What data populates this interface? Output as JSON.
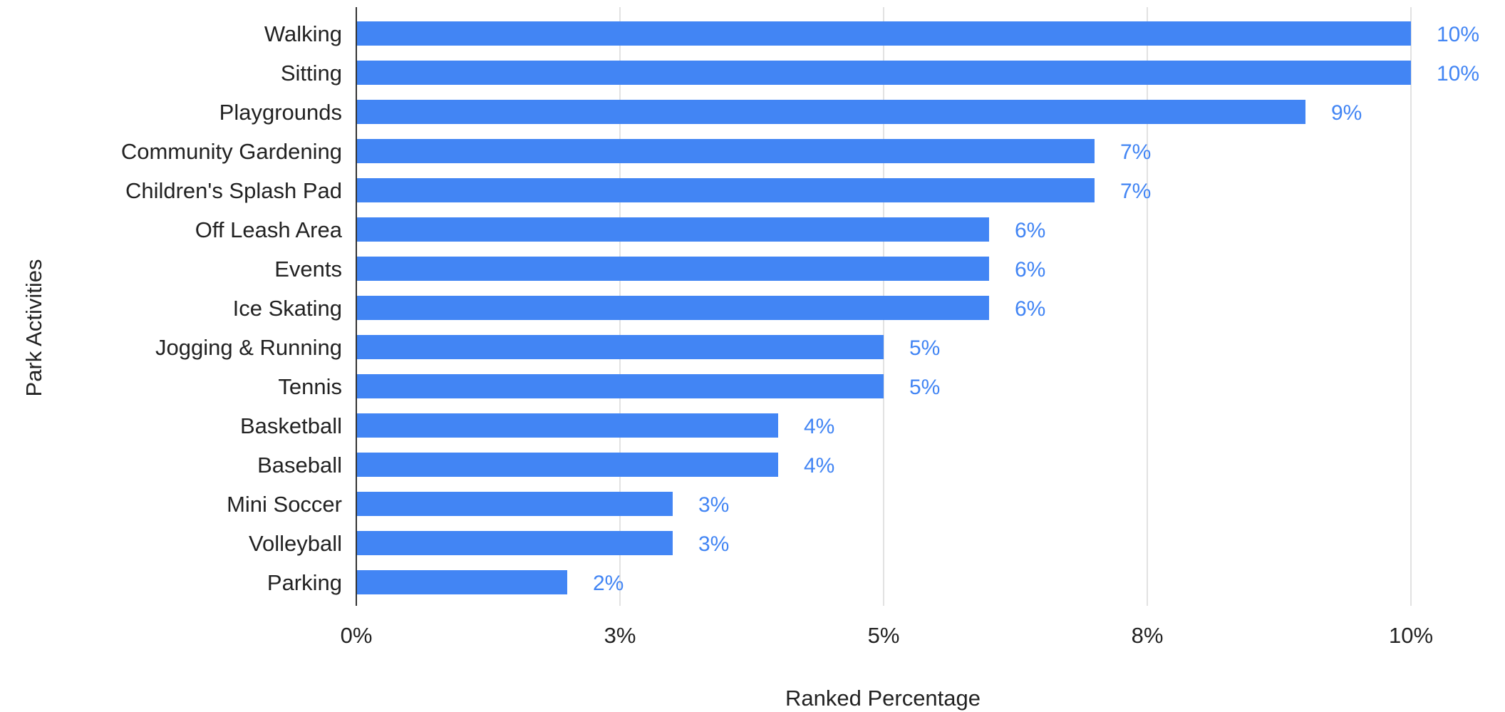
{
  "chart_data": {
    "type": "bar",
    "orientation": "horizontal",
    "xlabel": "Ranked Percentage",
    "ylabel": "Park Activities",
    "categories": [
      "Walking",
      "Sitting",
      "Playgrounds",
      "Community Gardening",
      "Children's Splash Pad",
      "Off Leash Area",
      "Events",
      "Ice Skating",
      "Jogging & Running",
      "Tennis",
      "Basketball",
      "Baseball",
      "Mini Soccer",
      "Volleyball",
      "Parking"
    ],
    "values": [
      10,
      10,
      9,
      7,
      7,
      6,
      6,
      6,
      5,
      5,
      4,
      4,
      3,
      3,
      2
    ],
    "bar_values": [
      10,
      10,
      9,
      7,
      7,
      6,
      6,
      6,
      5,
      5,
      4,
      4,
      3,
      3,
      2
    ],
    "data_labels": [
      "10%",
      "10%",
      "9%",
      "7%",
      "7%",
      "6%",
      "6%",
      "6%",
      "5%",
      "5%",
      "4%",
      "4%",
      "3%",
      "3%",
      "2%"
    ],
    "xticks": [
      0,
      2.5,
      5,
      7.5,
      10
    ],
    "xtick_labels": [
      "0%",
      "3%",
      "5%",
      "8%",
      "10%"
    ],
    "xlim": [
      0,
      10
    ],
    "grid": true,
    "legend": "none",
    "colors": {
      "bar": "#4285f4",
      "label": "#4285f4",
      "grid": "#d9d9d9",
      "axis": "#333333"
    }
  }
}
